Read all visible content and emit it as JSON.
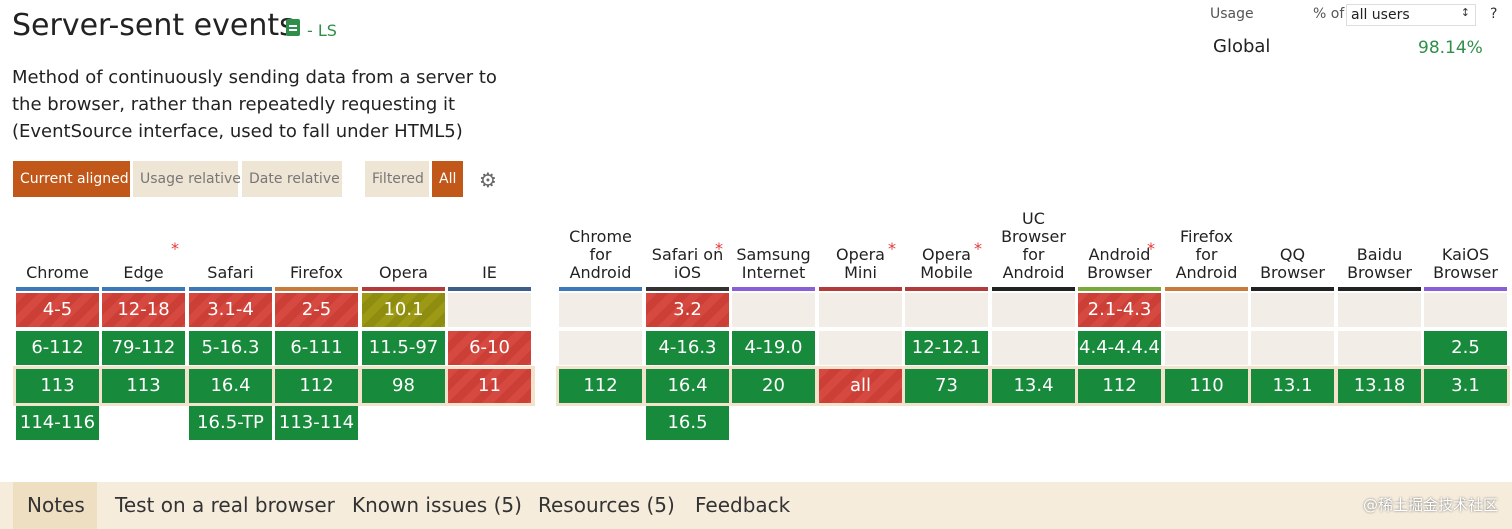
{
  "feature": {
    "title": "Server-sent events",
    "spec_status": "- LS",
    "description": "Method of continuously sending data from a server to the browser, rather than repeatedly requesting it (EventSource interface, used to fall under HTML5)"
  },
  "usage": {
    "label": "Usage",
    "pct_of": "% of",
    "selected_users": "all users",
    "help": "?",
    "global_label": "Global",
    "global_value": "98.14%"
  },
  "view_controls": {
    "current_aligned": "Current aligned",
    "usage_relative": "Usage relative",
    "date_relative": "Date relative",
    "filtered": "Filtered",
    "all": "All"
  },
  "colors": {
    "supported": "#178a3b",
    "unsupported": "#d64940",
    "partial": "#9c9a14",
    "active": "#c2571a"
  },
  "desktop_browsers": [
    {
      "name": "Chrome",
      "bar": "#3c79b8",
      "note": false,
      "rows": [
        {
          "v": "4-5",
          "s": "n"
        },
        {
          "v": "6-112",
          "s": "y"
        },
        {
          "v": "113",
          "s": "y"
        },
        {
          "v": "114-116",
          "s": "y"
        }
      ]
    },
    {
      "name": "Edge",
      "bar": "#3c79b8",
      "note": true,
      "rows": [
        {
          "v": "12-18",
          "s": "n"
        },
        {
          "v": "79-112",
          "s": "y"
        },
        {
          "v": "113",
          "s": "y"
        },
        {
          "v": "",
          "s": ""
        }
      ]
    },
    {
      "name": "Safari",
      "bar": "#3c79b8",
      "note": false,
      "rows": [
        {
          "v": "3.1-4",
          "s": "n"
        },
        {
          "v": "5-16.3",
          "s": "y"
        },
        {
          "v": "16.4",
          "s": "y"
        },
        {
          "v": "16.5-TP",
          "s": "y"
        }
      ]
    },
    {
      "name": "Firefox",
      "bar": "#c87a3a",
      "note": false,
      "rows": [
        {
          "v": "2-5",
          "s": "n"
        },
        {
          "v": "6-111",
          "s": "y"
        },
        {
          "v": "112",
          "s": "y"
        },
        {
          "v": "113-114",
          "s": "y"
        }
      ]
    },
    {
      "name": "Opera",
      "bar": "#b33a3a",
      "note": false,
      "rows": [
        {
          "v": "10.1",
          "s": "p"
        },
        {
          "v": "11.5-97",
          "s": "y"
        },
        {
          "v": "98",
          "s": "y"
        },
        {
          "v": "",
          "s": ""
        }
      ]
    },
    {
      "name": "IE",
      "bar": "#3d5d8a",
      "note": false,
      "rows": [
        {
          "v": "",
          "s": "e"
        },
        {
          "v": "6-10",
          "s": "n"
        },
        {
          "v": "11",
          "s": "n"
        },
        {
          "v": "",
          "s": ""
        }
      ]
    }
  ],
  "mobile_browsers": [
    {
      "name": "Chrome for Android",
      "bar": "#3c79b8",
      "note": false,
      "rows": [
        {
          "v": "",
          "s": "e"
        },
        {
          "v": "",
          "s": "e"
        },
        {
          "v": "112",
          "s": "y"
        },
        {
          "v": "",
          "s": ""
        }
      ]
    },
    {
      "name": "Safari on iOS",
      "bar": "#333333",
      "note": true,
      "rows": [
        {
          "v": "3.2",
          "s": "n"
        },
        {
          "v": "4-16.3",
          "s": "y"
        },
        {
          "v": "16.4",
          "s": "y"
        },
        {
          "v": "16.5",
          "s": "y"
        }
      ]
    },
    {
      "name": "Samsung Internet",
      "bar": "#8a5fd6",
      "note": false,
      "rows": [
        {
          "v": "",
          "s": "e"
        },
        {
          "v": "4-19.0",
          "s": "y"
        },
        {
          "v": "20",
          "s": "y"
        },
        {
          "v": "",
          "s": ""
        }
      ]
    },
    {
      "name": "Opera Mini",
      "bar": "#b33a3a",
      "note": true,
      "rows": [
        {
          "v": "",
          "s": "e"
        },
        {
          "v": "",
          "s": "e"
        },
        {
          "v": "all",
          "s": "n"
        },
        {
          "v": "",
          "s": ""
        }
      ]
    },
    {
      "name": "Opera Mobile",
      "bar": "#b33a3a",
      "note": true,
      "rows": [
        {
          "v": "",
          "s": "e"
        },
        {
          "v": "12-12.1",
          "s": "y"
        },
        {
          "v": "73",
          "s": "y"
        },
        {
          "v": "",
          "s": ""
        }
      ]
    },
    {
      "name": "UC Browser for Android",
      "bar": "#222222",
      "note": false,
      "rows": [
        {
          "v": "",
          "s": "e"
        },
        {
          "v": "",
          "s": "e"
        },
        {
          "v": "13.4",
          "s": "y"
        },
        {
          "v": "",
          "s": ""
        }
      ]
    },
    {
      "name": "Android Browser",
      "bar": "#7aa83b",
      "note": true,
      "rows": [
        {
          "v": "2.1-4.3",
          "s": "n"
        },
        {
          "v": "4.4-4.4.4",
          "s": "y"
        },
        {
          "v": "112",
          "s": "y"
        },
        {
          "v": "",
          "s": ""
        }
      ]
    },
    {
      "name": "Firefox for Android",
      "bar": "#c87a3a",
      "note": false,
      "rows": [
        {
          "v": "",
          "s": "e"
        },
        {
          "v": "",
          "s": "e"
        },
        {
          "v": "110",
          "s": "y"
        },
        {
          "v": "",
          "s": ""
        }
      ]
    },
    {
      "name": "QQ Browser",
      "bar": "#222222",
      "note": false,
      "rows": [
        {
          "v": "",
          "s": "e"
        },
        {
          "v": "",
          "s": "e"
        },
        {
          "v": "13.1",
          "s": "y"
        },
        {
          "v": "",
          "s": ""
        }
      ]
    },
    {
      "name": "Baidu Browser",
      "bar": "#222222",
      "note": false,
      "rows": [
        {
          "v": "",
          "s": "e"
        },
        {
          "v": "",
          "s": "e"
        },
        {
          "v": "13.18",
          "s": "y"
        },
        {
          "v": "",
          "s": ""
        }
      ]
    },
    {
      "name": "KaiOS Browser",
      "bar": "#8a5fd6",
      "note": false,
      "rows": [
        {
          "v": "",
          "s": "e"
        },
        {
          "v": "2.5",
          "s": "y"
        },
        {
          "v": "3.1",
          "s": "y"
        },
        {
          "v": "",
          "s": ""
        }
      ]
    }
  ],
  "bottom_tabs": [
    {
      "label": "Notes",
      "active": true
    },
    {
      "label": "Test on a real browser",
      "active": false
    },
    {
      "label": "Known issues (5)",
      "active": false
    },
    {
      "label": "Resources (5)",
      "active": false
    },
    {
      "label": "Feedback",
      "active": false
    }
  ],
  "watermark": "@稀土掘金技术社区"
}
